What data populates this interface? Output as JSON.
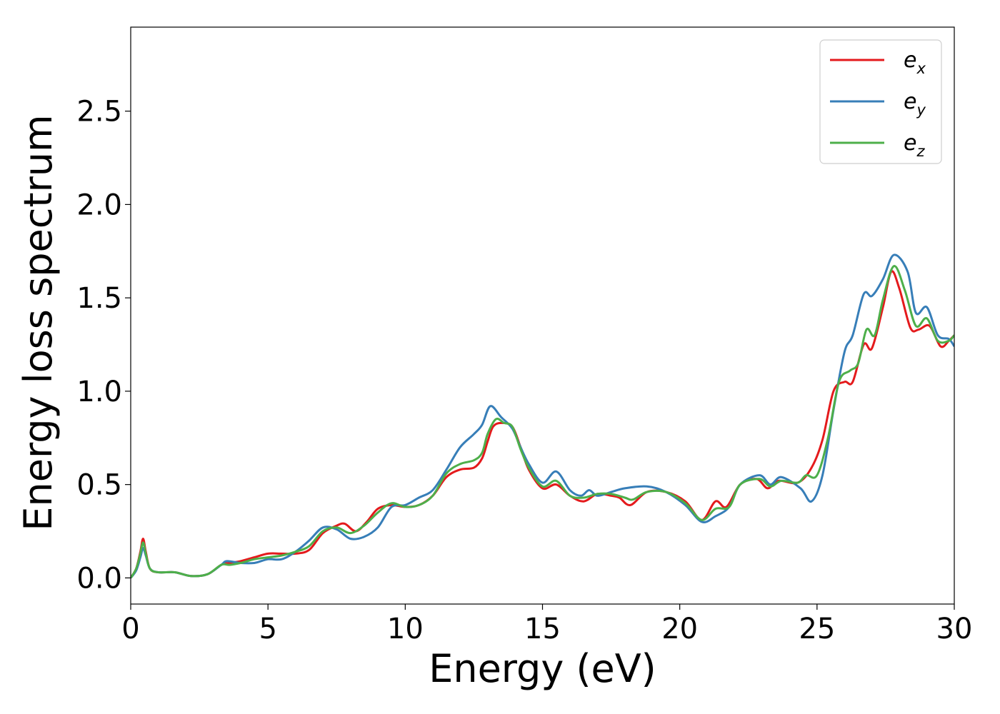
{
  "chart_data": {
    "type": "line",
    "xlabel": "Energy (eV)",
    "ylabel": "Energy loss spectrum",
    "xlim": [
      0,
      30
    ],
    "ylim": [
      -0.14,
      2.95
    ],
    "xticks": [
      "0",
      "5",
      "10",
      "15",
      "20",
      "25",
      "30"
    ],
    "yticks": [
      "0.0",
      "0.5",
      "1.0",
      "1.5",
      "2.0",
      "2.5"
    ],
    "grid": false,
    "legend_position": "top-right",
    "series": [
      {
        "name": "e",
        "subscript": "x",
        "color": "#e41a1c",
        "points": [
          [
            0,
            0
          ],
          [
            0.2,
            0.05
          ],
          [
            0.35,
            0.14
          ],
          [
            0.45,
            0.21
          ],
          [
            0.55,
            0.14
          ],
          [
            0.7,
            0.05
          ],
          [
            1,
            0.03
          ],
          [
            1.6,
            0.03
          ],
          [
            2.2,
            0.01
          ],
          [
            2.8,
            0.02
          ],
          [
            3.3,
            0.07
          ],
          [
            3.6,
            0.08
          ],
          [
            4,
            0.09
          ],
          [
            4.5,
            0.11
          ],
          [
            5,
            0.13
          ],
          [
            5.5,
            0.13
          ],
          [
            6,
            0.13
          ],
          [
            6.5,
            0.15
          ],
          [
            7,
            0.24
          ],
          [
            7.5,
            0.28
          ],
          [
            7.8,
            0.29
          ],
          [
            8.2,
            0.25
          ],
          [
            8.6,
            0.3
          ],
          [
            9,
            0.37
          ],
          [
            9.5,
            0.39
          ],
          [
            10,
            0.38
          ],
          [
            10.5,
            0.39
          ],
          [
            11,
            0.44
          ],
          [
            11.5,
            0.54
          ],
          [
            12,
            0.58
          ],
          [
            12.5,
            0.59
          ],
          [
            12.8,
            0.64
          ],
          [
            13,
            0.73
          ],
          [
            13.2,
            0.81
          ],
          [
            13.5,
            0.83
          ],
          [
            13.9,
            0.81
          ],
          [
            14.2,
            0.7
          ],
          [
            14.5,
            0.58
          ],
          [
            15,
            0.48
          ],
          [
            15.5,
            0.5
          ],
          [
            16,
            0.44
          ],
          [
            16.5,
            0.41
          ],
          [
            17,
            0.45
          ],
          [
            17.5,
            0.44
          ],
          [
            17.8,
            0.43
          ],
          [
            18.2,
            0.39
          ],
          [
            18.8,
            0.46
          ],
          [
            19.5,
            0.46
          ],
          [
            20.2,
            0.41
          ],
          [
            20.8,
            0.31
          ],
          [
            21.3,
            0.41
          ],
          [
            21.7,
            0.38
          ],
          [
            22.2,
            0.5
          ],
          [
            22.8,
            0.53
          ],
          [
            23.2,
            0.48
          ],
          [
            23.6,
            0.52
          ],
          [
            24.3,
            0.51
          ],
          [
            24.8,
            0.59
          ],
          [
            25.2,
            0.74
          ],
          [
            25.6,
            1.0
          ],
          [
            26,
            1.05
          ],
          [
            26.3,
            1.05
          ],
          [
            26.7,
            1.25
          ],
          [
            27,
            1.23
          ],
          [
            27.4,
            1.45
          ],
          [
            27.7,
            1.64
          ],
          [
            28,
            1.55
          ],
          [
            28.4,
            1.34
          ],
          [
            28.7,
            1.33
          ],
          [
            29.1,
            1.35
          ],
          [
            29.5,
            1.24
          ],
          [
            29.8,
            1.27
          ],
          [
            30,
            1.3
          ]
        ]
      },
      {
        "name": "e",
        "subscript": "y",
        "color": "#377eb8",
        "points": [
          [
            0,
            0
          ],
          [
            0.2,
            0.04
          ],
          [
            0.35,
            0.11
          ],
          [
            0.45,
            0.16
          ],
          [
            0.55,
            0.12
          ],
          [
            0.7,
            0.05
          ],
          [
            1,
            0.03
          ],
          [
            1.6,
            0.03
          ],
          [
            2.2,
            0.01
          ],
          [
            2.8,
            0.02
          ],
          [
            3.3,
            0.07
          ],
          [
            3.5,
            0.09
          ],
          [
            4,
            0.08
          ],
          [
            4.5,
            0.08
          ],
          [
            5,
            0.1
          ],
          [
            5.5,
            0.1
          ],
          [
            6,
            0.14
          ],
          [
            6.5,
            0.2
          ],
          [
            7,
            0.27
          ],
          [
            7.5,
            0.26
          ],
          [
            8,
            0.21
          ],
          [
            8.5,
            0.22
          ],
          [
            9,
            0.27
          ],
          [
            9.5,
            0.38
          ],
          [
            10,
            0.39
          ],
          [
            10.5,
            0.43
          ],
          [
            11,
            0.47
          ],
          [
            11.5,
            0.58
          ],
          [
            12,
            0.7
          ],
          [
            12.5,
            0.77
          ],
          [
            12.8,
            0.82
          ],
          [
            13.1,
            0.92
          ],
          [
            13.5,
            0.86
          ],
          [
            13.9,
            0.8
          ],
          [
            14.2,
            0.7
          ],
          [
            14.5,
            0.61
          ],
          [
            15,
            0.51
          ],
          [
            15.5,
            0.57
          ],
          [
            16,
            0.47
          ],
          [
            16.4,
            0.44
          ],
          [
            16.7,
            0.47
          ],
          [
            17,
            0.44
          ],
          [
            17.5,
            0.46
          ],
          [
            18,
            0.48
          ],
          [
            18.8,
            0.49
          ],
          [
            19.5,
            0.46
          ],
          [
            20.2,
            0.39
          ],
          [
            20.8,
            0.3
          ],
          [
            21.3,
            0.33
          ],
          [
            21.8,
            0.38
          ],
          [
            22.2,
            0.5
          ],
          [
            22.9,
            0.55
          ],
          [
            23.3,
            0.5
          ],
          [
            23.7,
            0.54
          ],
          [
            24.4,
            0.48
          ],
          [
            24.8,
            0.41
          ],
          [
            25.2,
            0.55
          ],
          [
            25.6,
            0.9
          ],
          [
            26,
            1.21
          ],
          [
            26.3,
            1.3
          ],
          [
            26.7,
            1.52
          ],
          [
            27,
            1.51
          ],
          [
            27.4,
            1.6
          ],
          [
            27.8,
            1.73
          ],
          [
            28.3,
            1.64
          ],
          [
            28.6,
            1.42
          ],
          [
            29,
            1.45
          ],
          [
            29.4,
            1.3
          ],
          [
            29.8,
            1.28
          ],
          [
            30,
            1.24
          ]
        ]
      },
      {
        "name": "e",
        "subscript": "z",
        "color": "#4daf4a",
        "points": [
          [
            0,
            0
          ],
          [
            0.2,
            0.05
          ],
          [
            0.35,
            0.13
          ],
          [
            0.45,
            0.19
          ],
          [
            0.55,
            0.13
          ],
          [
            0.7,
            0.05
          ],
          [
            1,
            0.03
          ],
          [
            1.6,
            0.03
          ],
          [
            2.2,
            0.01
          ],
          [
            2.8,
            0.02
          ],
          [
            3.3,
            0.07
          ],
          [
            3.6,
            0.07
          ],
          [
            4,
            0.08
          ],
          [
            4.5,
            0.1
          ],
          [
            5,
            0.11
          ],
          [
            5.5,
            0.12
          ],
          [
            6,
            0.14
          ],
          [
            6.5,
            0.17
          ],
          [
            7,
            0.25
          ],
          [
            7.5,
            0.27
          ],
          [
            8,
            0.24
          ],
          [
            8.5,
            0.28
          ],
          [
            9,
            0.35
          ],
          [
            9.5,
            0.4
          ],
          [
            10,
            0.38
          ],
          [
            10.5,
            0.39
          ],
          [
            11,
            0.44
          ],
          [
            11.5,
            0.56
          ],
          [
            12,
            0.61
          ],
          [
            12.5,
            0.63
          ],
          [
            12.8,
            0.67
          ],
          [
            13,
            0.77
          ],
          [
            13.3,
            0.85
          ],
          [
            13.6,
            0.83
          ],
          [
            13.9,
            0.81
          ],
          [
            14.2,
            0.69
          ],
          [
            14.5,
            0.59
          ],
          [
            15,
            0.49
          ],
          [
            15.5,
            0.52
          ],
          [
            16,
            0.44
          ],
          [
            16.5,
            0.43
          ],
          [
            17,
            0.45
          ],
          [
            17.5,
            0.45
          ],
          [
            18,
            0.43
          ],
          [
            18.3,
            0.42
          ],
          [
            18.8,
            0.46
          ],
          [
            19.5,
            0.46
          ],
          [
            20.2,
            0.4
          ],
          [
            20.8,
            0.31
          ],
          [
            21.3,
            0.37
          ],
          [
            21.8,
            0.38
          ],
          [
            22.2,
            0.5
          ],
          [
            22.9,
            0.53
          ],
          [
            23.3,
            0.49
          ],
          [
            23.7,
            0.52
          ],
          [
            24.3,
            0.51
          ],
          [
            24.6,
            0.55
          ],
          [
            25,
            0.55
          ],
          [
            25.4,
            0.75
          ],
          [
            25.8,
            1.05
          ],
          [
            26.2,
            1.11
          ],
          [
            26.5,
            1.15
          ],
          [
            26.8,
            1.33
          ],
          [
            27.1,
            1.3
          ],
          [
            27.4,
            1.49
          ],
          [
            27.8,
            1.67
          ],
          [
            28.2,
            1.54
          ],
          [
            28.6,
            1.35
          ],
          [
            29,
            1.39
          ],
          [
            29.4,
            1.27
          ],
          [
            29.8,
            1.27
          ],
          [
            30,
            1.3
          ]
        ]
      }
    ]
  }
}
